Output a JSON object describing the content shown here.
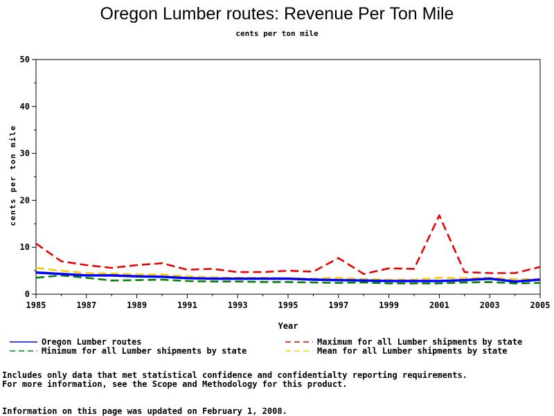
{
  "chart_data": {
    "type": "line",
    "title": "Oregon Lumber routes: Revenue Per Ton Mile",
    "subtitle": "cents per ton mile",
    "xlabel": "Year",
    "ylabel": "cents per ton mile",
    "xlim": [
      1985,
      2005
    ],
    "ylim": [
      0,
      50
    ],
    "x_ticks": [
      "1985",
      "1987",
      "1989",
      "1991",
      "1993",
      "1995",
      "1997",
      "1999",
      "2001",
      "2003",
      "2005"
    ],
    "y_ticks": [
      "0",
      "10",
      "20",
      "30",
      "40",
      "50"
    ],
    "grid": false,
    "legend_position": "bottom",
    "x": [
      1985,
      1986,
      1987,
      1988,
      1989,
      1990,
      1991,
      1992,
      1993,
      1994,
      1995,
      1996,
      1997,
      1998,
      1999,
      2000,
      2001,
      2002,
      2003,
      2004,
      2005
    ],
    "series": [
      {
        "name": "Oregon Lumber routes",
        "color": "#0000ff",
        "dash": "solid",
        "values": [
          4.6,
          4.3,
          4.0,
          4.0,
          3.8,
          3.7,
          3.4,
          3.3,
          3.3,
          3.3,
          3.3,
          3.1,
          3.0,
          2.9,
          2.8,
          2.8,
          2.8,
          3.0,
          3.3,
          2.7,
          3.1
        ]
      },
      {
        "name": "Maximum for all Lumber shipments by state",
        "color": "#e60000",
        "dash": "dashed",
        "values": [
          10.8,
          7.0,
          6.2,
          5.6,
          6.2,
          6.6,
          5.2,
          5.4,
          4.7,
          4.7,
          5.0,
          4.8,
          7.7,
          4.3,
          5.5,
          5.4,
          16.8,
          4.7,
          4.5,
          4.5,
          5.8
        ]
      },
      {
        "name": "Minimum for all Lumber shipments by state",
        "color": "#008000",
        "dash": "dashed",
        "values": [
          3.5,
          4.0,
          3.5,
          2.9,
          3.0,
          3.1,
          2.8,
          2.7,
          2.7,
          2.6,
          2.6,
          2.5,
          2.4,
          2.5,
          2.3,
          2.3,
          2.3,
          2.5,
          2.6,
          2.3,
          2.4
        ]
      },
      {
        "name": "Mean for all Lumber shipments by state",
        "color": "#ffcc00",
        "dash": "dashed",
        "values": [
          5.6,
          5.0,
          4.5,
          4.4,
          4.2,
          4.2,
          3.8,
          3.6,
          3.5,
          3.5,
          3.4,
          3.3,
          3.5,
          3.2,
          3.1,
          3.1,
          3.5,
          3.4,
          3.5,
          3.2,
          3.2
        ]
      }
    ]
  },
  "notes": {
    "line1": "Includes only data that met statistical confidence and confidentialty reporting requirements.",
    "line2": "For more information, see the Scope and Methodology for this product.",
    "updated": "Information on this page was updated on February 1, 2008."
  }
}
